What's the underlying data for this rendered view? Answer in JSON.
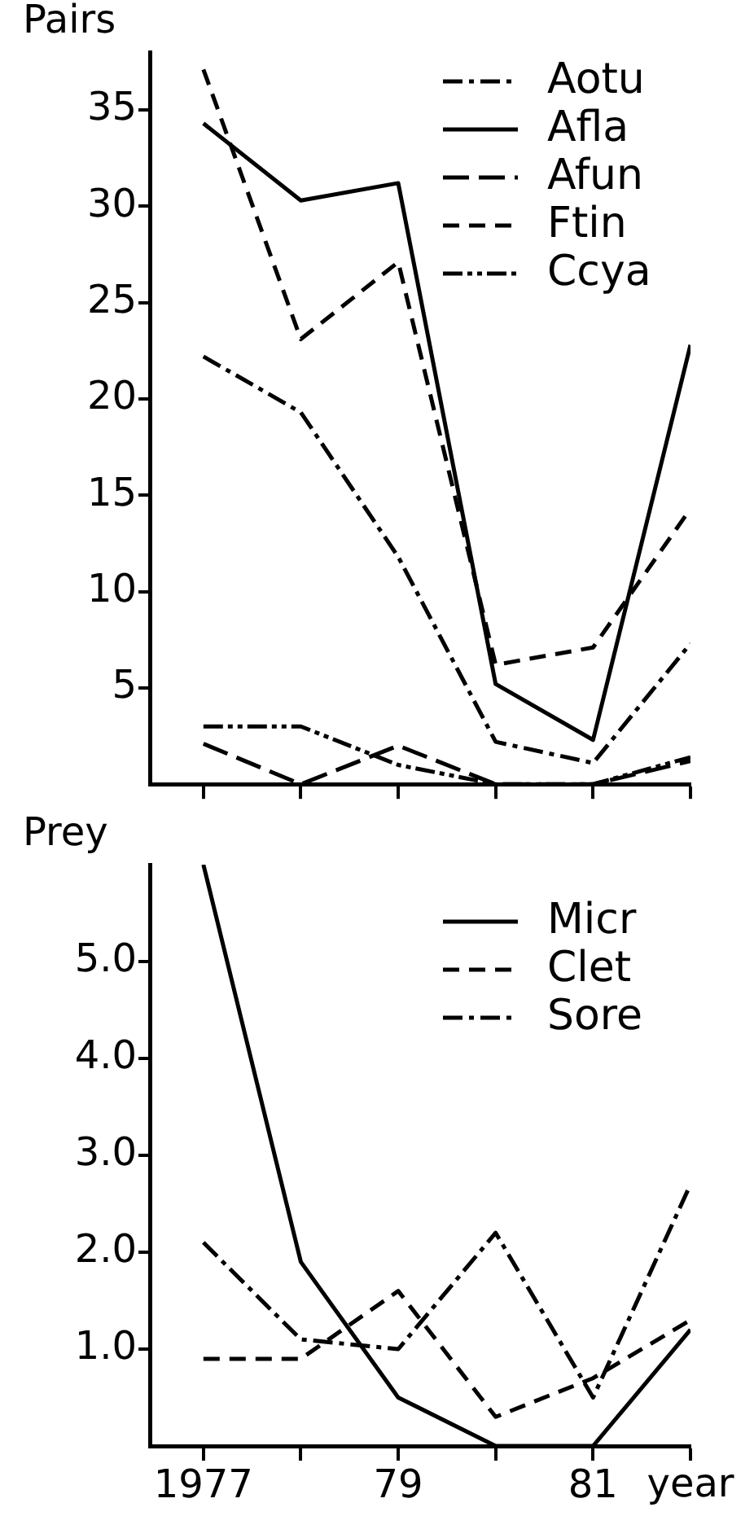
{
  "chart_data": [
    {
      "type": "line",
      "ylabel": "Pairs",
      "x": [
        1977,
        1978,
        1979,
        1980,
        1981,
        1982
      ],
      "xlim": [
        1976.45,
        1982
      ],
      "xticks": [
        {
          "value": 1977,
          "label": null
        },
        {
          "value": 1978,
          "label": null
        },
        {
          "value": 1979,
          "label": null
        },
        {
          "value": 1980,
          "label": null
        },
        {
          "value": 1981,
          "label": null
        },
        {
          "value": 1982,
          "label": null
        }
      ],
      "ylim": [
        0,
        38
      ],
      "yticks": [
        5,
        10,
        15,
        20,
        25,
        30,
        35
      ],
      "tick_labels": "y",
      "legend": "top right",
      "marker": "none",
      "grid": false,
      "series": [
        {
          "name": "Aotu",
          "color": "#000000",
          "line_style": "dashdot",
          "values": [
            22.2,
            19.3,
            11.8,
            2.2,
            1.1,
            7.3
          ]
        },
        {
          "name": "Afla",
          "color": "#000000",
          "line_style": "solid",
          "values": [
            34.3,
            30.3,
            31.2,
            5.2,
            2.3,
            22.8
          ]
        },
        {
          "name": "Afun",
          "color": "#000000",
          "line_style": "longdash",
          "values": [
            2.1,
            0,
            2,
            0,
            0,
            1.2
          ]
        },
        {
          "name": "Ftin",
          "color": "#000000",
          "line_style": "dashed",
          "values": [
            37.1,
            23.1,
            27.1,
            6.2,
            7.1,
            14.3
          ]
        },
        {
          "name": "Ccya",
          "color": "#000000",
          "line_style": "dashdotdot",
          "values": [
            3,
            3,
            1,
            0,
            0,
            1.4
          ]
        }
      ]
    },
    {
      "type": "line",
      "ylabel": "Prey",
      "xlabel": "year",
      "x": [
        1977,
        1978,
        1979,
        1980,
        1981,
        1982
      ],
      "xlim": [
        1976.45,
        1982
      ],
      "xticks": [
        {
          "value": 1977,
          "label": "1977"
        },
        {
          "value": 1978,
          "label": null
        },
        {
          "value": 1979,
          "label": "79"
        },
        {
          "value": 1980,
          "label": null
        },
        {
          "value": 1981,
          "label": "81"
        },
        {
          "value": 1982,
          "label": null
        }
      ],
      "ylim": [
        0,
        6
      ],
      "yticks": [
        {
          "value": 1,
          "label": "1.0"
        },
        {
          "value": 2,
          "label": "2.0"
        },
        {
          "value": 3,
          "label": "3.0"
        },
        {
          "value": 4,
          "label": "4.0"
        },
        {
          "value": 5,
          "label": "5.0"
        }
      ],
      "legend": "top right",
      "marker": "none",
      "grid": false,
      "series": [
        {
          "name": "Micr",
          "color": "#000000",
          "line_style": "solid",
          "values": [
            6,
            1.9,
            0.5,
            0,
            0,
            1.2
          ]
        },
        {
          "name": "Clet",
          "color": "#000000",
          "line_style": "dashed",
          "values": [
            0.9,
            0.9,
            1.6,
            0.3,
            0.7,
            1.3
          ]
        },
        {
          "name": "Sore",
          "color": "#000000",
          "line_style": "dashdot",
          "values": [
            2.1,
            1.1,
            1,
            2.2,
            0.5,
            2.7
          ]
        }
      ]
    }
  ]
}
